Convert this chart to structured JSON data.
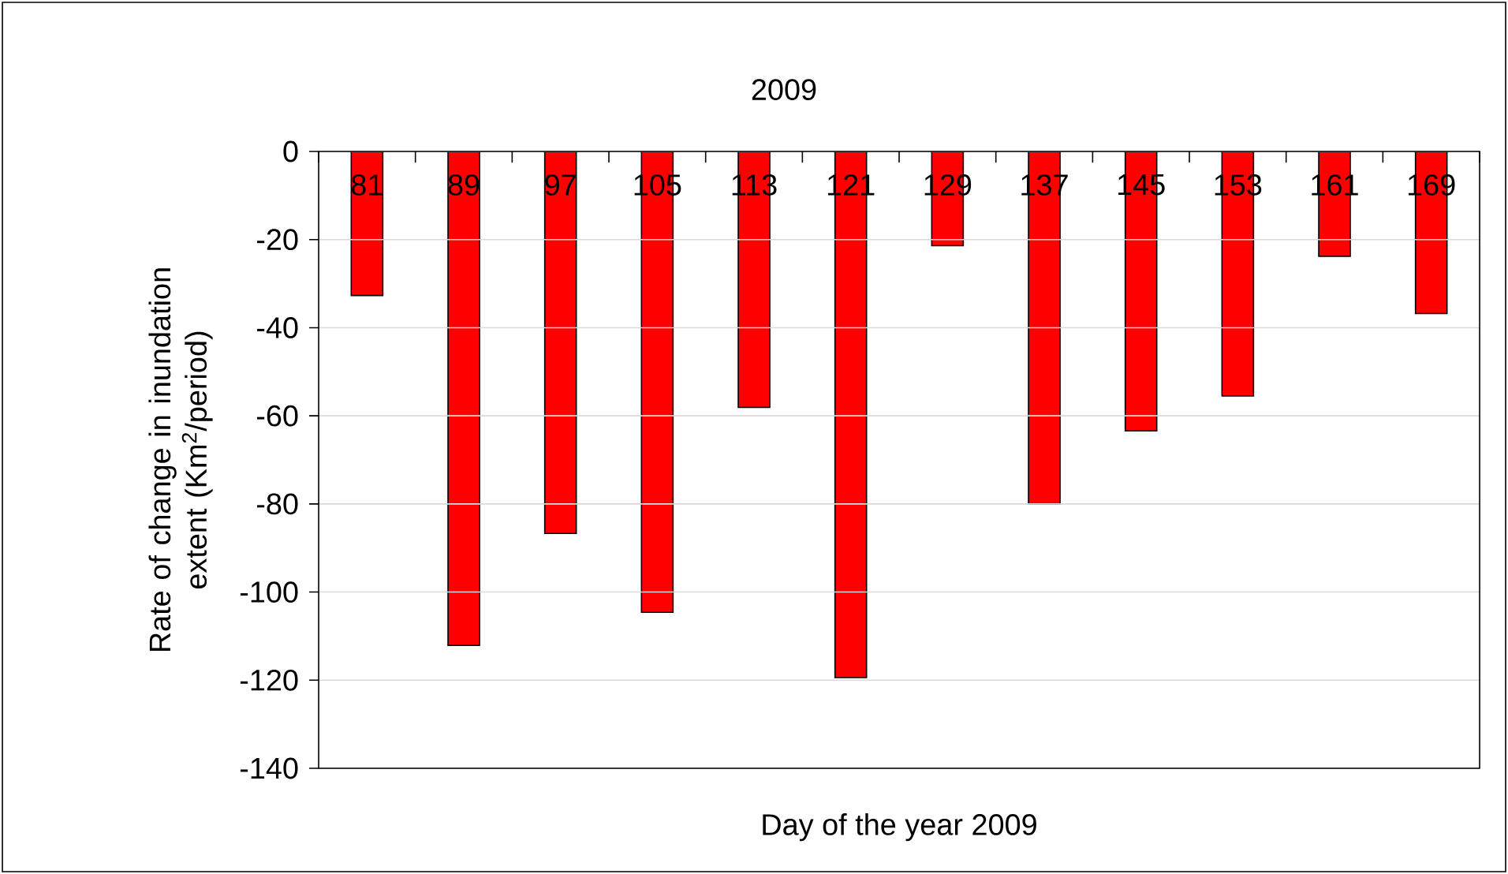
{
  "chart_data": {
    "type": "bar",
    "title": "2009",
    "xlabel": "Day of the year 2009",
    "ylabel": "Rate of change in inundation extent (Km$^{2}$/period)",
    "categories": [
      "81",
      "89",
      "97",
      "105",
      "113",
      "121",
      "129",
      "137",
      "145",
      "153",
      "161",
      "169"
    ],
    "values": [
      -32.7,
      -112.1,
      -86.7,
      -104.6,
      -58.1,
      -119.4,
      -21.4,
      -80,
      -63.4,
      -55.5,
      -23.8,
      -36.8
    ],
    "color": "#ff0000",
    "ylim": [
      -140,
      0
    ],
    "yticks": [
      -140,
      -120,
      -100,
      -80,
      -60,
      -40,
      -20,
      0
    ],
    "grid": "y"
  }
}
